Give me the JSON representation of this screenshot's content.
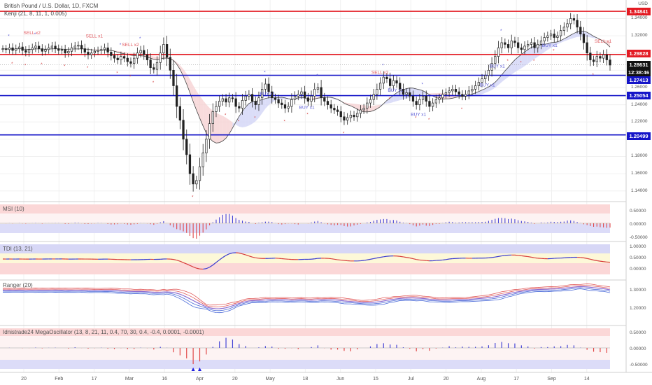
{
  "header": {
    "symbol_title": "British Pound / U.S. Dollar, 1D, FXCM",
    "indicator_label": "Kenji (21, 8, 11, 1, 0.005)",
    "currency": "USD"
  },
  "price_labels": [
    {
      "value": "1.34841",
      "color": "#e31b23"
    },
    {
      "value": "1.29828",
      "color": "#e31b23"
    },
    {
      "value": "1.28631",
      "color": "#111111"
    },
    {
      "value": "12:38:46",
      "color": "#111111"
    },
    {
      "value": "1.27413",
      "color": "#1515c8"
    },
    {
      "value": "1.25054",
      "color": "#1515c8"
    },
    {
      "value": "1.20499",
      "color": "#1515c8"
    }
  ],
  "price_ticks": [
    "1.34000",
    "1.32000",
    "1.30000",
    "1.28000",
    "1.26000",
    "1.24000",
    "1.22000",
    "1.20000",
    "1.18000",
    "1.16000",
    "1.14000"
  ],
  "x_ticks": [
    "20",
    "Feb",
    "17",
    "Mar",
    "16",
    "Apr",
    "20",
    "May",
    "18",
    "Jun",
    "15",
    "Jul",
    "20",
    "Aug",
    "17",
    "Sep",
    "14"
  ],
  "signals": [
    {
      "text": "SELL x2",
      "color": "#e0595f"
    },
    {
      "text": "SELL x1",
      "color": "#e0595f"
    },
    {
      "text": "SELL x2",
      "color": "#e0595f"
    },
    {
      "text": "BUY x1",
      "color": "#5b5bd6"
    },
    {
      "text": "BUY x1",
      "color": "#5b5bd6"
    },
    {
      "text": "SELL x2",
      "color": "#e0595f"
    },
    {
      "text": "BUY x1",
      "color": "#5b5bd6"
    },
    {
      "text": "BUY x1",
      "color": "#5b5bd6"
    },
    {
      "text": "BUY x1",
      "color": "#5b5bd6"
    },
    {
      "text": "BUY x1",
      "color": "#5b5bd6"
    },
    {
      "text": "BUY x1",
      "color": "#5b5bd6"
    },
    {
      "text": "SELL x1",
      "color": "#e0595f"
    }
  ],
  "panels": {
    "msi": {
      "label": "MSI (10)",
      "ticks": [
        "0.50000",
        "0.00000",
        "-0.50000"
      ]
    },
    "tdi": {
      "label": "TDI (13, 21)",
      "ticks": [
        "1.00000",
        "0.50000",
        "0.00000"
      ]
    },
    "ranger": {
      "label": "Ranger (20)",
      "ticks": [
        "1.30000",
        "1.20000"
      ]
    },
    "mega": {
      "label": "Idnistrade24 MegaOscillator (13, 8, 21, 11, 0.4, 70, 30, 0.4, -0.4, 0.0001, -0.0001)",
      "ticks": [
        "0.50000",
        "0.00000",
        "-0.50000"
      ]
    }
  },
  "colors": {
    "support": "#1515c8",
    "resistance": "#e31b23",
    "candle": "#222222"
  },
  "chart_data": {
    "type": "candlestick",
    "symbol": "GBPUSD",
    "timeframe": "1D",
    "x_ticks": [
      "20",
      "Feb",
      "17",
      "Mar",
      "16",
      "Apr",
      "20",
      "May",
      "18",
      "Jun",
      "15",
      "Jul",
      "20",
      "Aug",
      "17",
      "Sep",
      "14"
    ],
    "levels": [
      {
        "value": 1.34841,
        "kind": "resistance"
      },
      {
        "value": 1.29828,
        "kind": "resistance"
      },
      {
        "value": 1.27413,
        "kind": "support"
      },
      {
        "value": 1.25054,
        "kind": "support"
      },
      {
        "value": 1.20499,
        "kind": "support"
      }
    ],
    "last_price": 1.28631,
    "ylim": [
      1.13,
      1.355
    ],
    "close_path": [
      1.305,
      1.304,
      1.306,
      1.303,
      1.305,
      1.307,
      1.303,
      1.301,
      1.304,
      1.306,
      1.308,
      1.305,
      1.302,
      1.304,
      1.306,
      1.308,
      1.305,
      1.303,
      1.304,
      1.3,
      1.302,
      1.306,
      1.308,
      1.309,
      1.305,
      1.301,
      1.298,
      1.3,
      1.302,
      1.303,
      1.304,
      1.306,
      1.301,
      1.297,
      1.294,
      1.292,
      1.296,
      1.294,
      1.29,
      1.288,
      1.294,
      1.3,
      1.303,
      1.298,
      1.292,
      1.283,
      1.281,
      1.289,
      1.3,
      1.31,
      1.295,
      1.28,
      1.262,
      1.238,
      1.222,
      1.2,
      1.182,
      1.16,
      1.148,
      1.152,
      1.168,
      1.184,
      1.2,
      1.218,
      1.232,
      1.238,
      1.244,
      1.247,
      1.243,
      1.248,
      1.247,
      1.238,
      1.236,
      1.245,
      1.25,
      1.252,
      1.244,
      1.24,
      1.248,
      1.258,
      1.264,
      1.255,
      1.248,
      1.246,
      1.242,
      1.24,
      1.236,
      1.238,
      1.246,
      1.25,
      1.252,
      1.255,
      1.248,
      1.244,
      1.25,
      1.258,
      1.26,
      1.248,
      1.244,
      1.24,
      1.236,
      1.234,
      1.232,
      1.226,
      1.222,
      1.225,
      1.228,
      1.226,
      1.23,
      1.234,
      1.236,
      1.242,
      1.246,
      1.252,
      1.258,
      1.265,
      1.272,
      1.27,
      1.262,
      1.268,
      1.265,
      1.258,
      1.252,
      1.254,
      1.25,
      1.244,
      1.24,
      1.246,
      1.25,
      1.244,
      1.238,
      1.242,
      1.246,
      1.248,
      1.252,
      1.254,
      1.256,
      1.258,
      1.255,
      1.252,
      1.25,
      1.252,
      1.256,
      1.258,
      1.262,
      1.266,
      1.27,
      1.274,
      1.28,
      1.288,
      1.296,
      1.306,
      1.312,
      1.31,
      1.306,
      1.314,
      1.312,
      1.306,
      1.304,
      1.308,
      1.31,
      1.312,
      1.306,
      1.31,
      1.314,
      1.318,
      1.32,
      1.322,
      1.318,
      1.32,
      1.326,
      1.33,
      1.334,
      1.34,
      1.338,
      1.33,
      1.322,
      1.312,
      1.3,
      1.292,
      1.29,
      1.296,
      1.294,
      1.298,
      1.292,
      1.286
    ],
    "series": [
      {
        "name": "MSI (10)"
      },
      {
        "name": "TDI (13, 21)"
      },
      {
        "name": "Ranger (20)"
      },
      {
        "name": "Idnistrade24 MegaOscillator (13, 8, 21, 11, 0.4, 70, 30, 0.4, -0.4, 0.0001, -0.0001)"
      }
    ]
  }
}
